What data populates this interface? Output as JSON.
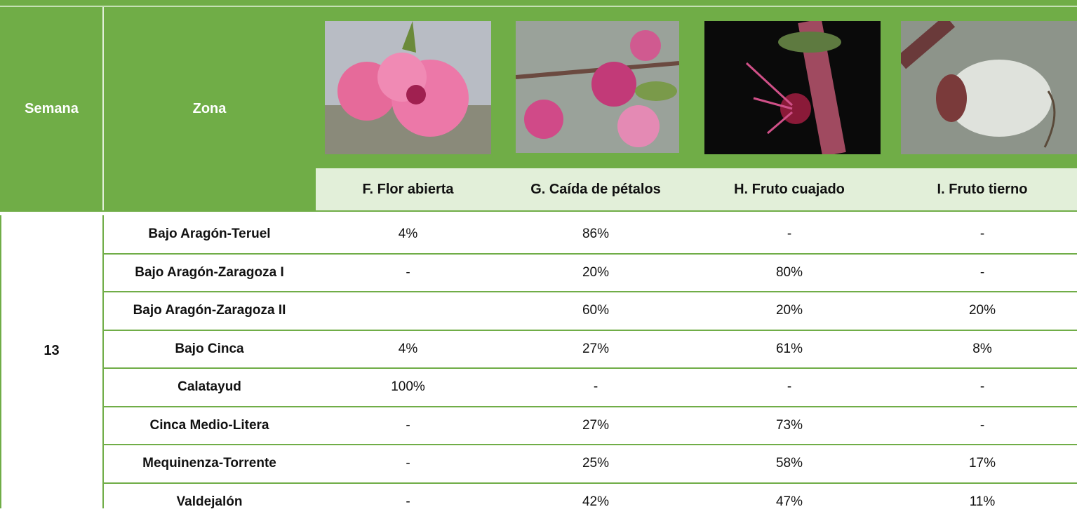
{
  "header": {
    "week": "Semana",
    "zone": "Zona",
    "stages": [
      "F. Flor abierta",
      "G. Caída de pétalos",
      "H. Fruto cuajado",
      "I. Fruto tierno"
    ]
  },
  "table": {
    "week": "13",
    "rows": [
      {
        "zone": "Bajo Aragón-Teruel",
        "values": [
          "4%",
          "86%",
          "-",
          "-"
        ]
      },
      {
        "zone": "Bajo Aragón-Zaragoza I",
        "values": [
          "-",
          "20%",
          "80%",
          "-"
        ]
      },
      {
        "zone": "Bajo Aragón-Zaragoza II",
        "values": [
          null,
          "60%",
          "20%",
          "20%"
        ]
      },
      {
        "zone": "Bajo Cinca",
        "values": [
          "4%",
          "27%",
          "61%",
          "8%"
        ]
      },
      {
        "zone": "Calatayud",
        "values": [
          "100%",
          "-",
          "-",
          "-"
        ]
      },
      {
        "zone": "Cinca Medio-Litera",
        "values": [
          "-",
          "27%",
          "73%",
          "-"
        ]
      },
      {
        "zone": "Mequinenza-Torrente",
        "values": [
          "-",
          "25%",
          "58%",
          "17%"
        ]
      },
      {
        "zone": "Valdejalón",
        "values": [
          "-",
          "42%",
          "47%",
          "11%"
        ]
      }
    ]
  }
}
